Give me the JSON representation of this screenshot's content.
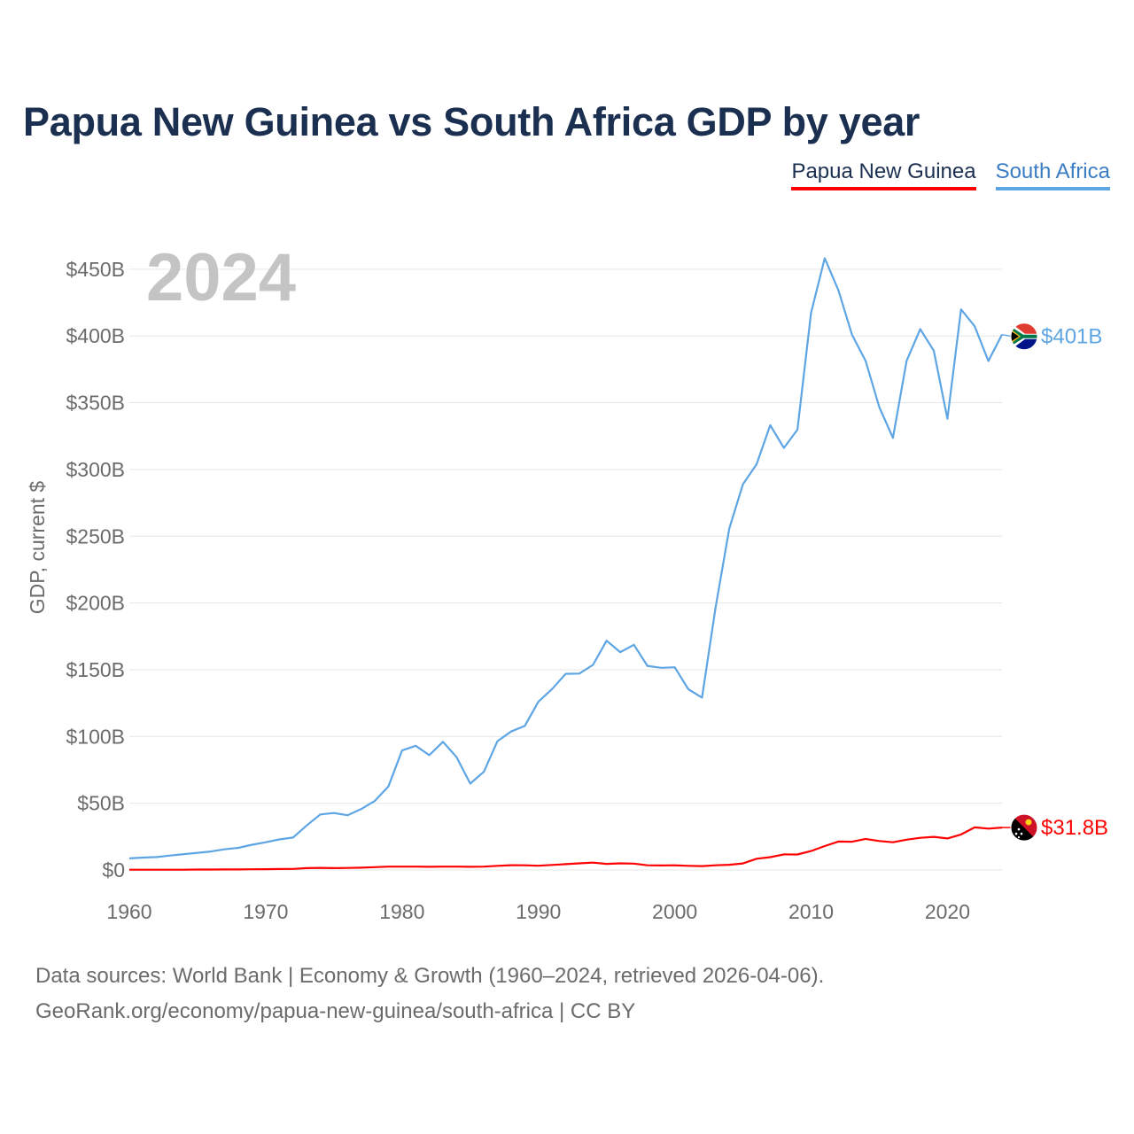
{
  "title": "Papua New Guinea vs South Africa GDP by year",
  "legend": [
    {
      "label": "Papua New Guinea",
      "color": "#ff0000"
    },
    {
      "label": "South Africa",
      "color": "#5ea5e4"
    }
  ],
  "year_label": "2024",
  "source": {
    "line1": "Data sources: World Bank | Economy & Growth (1960–2024, retrieved 2026-04-06).",
    "line2": "GeoRank.org/economy/papua-new-guinea/south-africa | CC BY"
  },
  "chart_data": {
    "type": "line",
    "title": "Papua New Guinea vs South Africa GDP by year",
    "xlabel": "",
    "ylabel": "GDP, current $",
    "xlim": [
      1960,
      2024
    ],
    "ylim": [
      0,
      460
    ],
    "units": "billions of current US$",
    "grid": true,
    "legend_position": "top-right",
    "x_ticks": [
      1960,
      1970,
      1980,
      1990,
      2000,
      2010,
      2020
    ],
    "x_tick_labels": [
      "1960",
      "1970",
      "1980",
      "1990",
      "2000",
      "2010",
      "2020"
    ],
    "y_ticks": [
      0,
      50,
      100,
      150,
      200,
      250,
      300,
      350,
      400,
      450
    ],
    "y_tick_labels": [
      "$0",
      "$50B",
      "$100B",
      "$150B",
      "$200B",
      "$250B",
      "$300B",
      "$350B",
      "$400B",
      "$450B"
    ],
    "x": [
      1960,
      1961,
      1962,
      1963,
      1964,
      1965,
      1966,
      1967,
      1968,
      1969,
      1970,
      1971,
      1972,
      1973,
      1974,
      1975,
      1976,
      1977,
      1978,
      1979,
      1980,
      1981,
      1982,
      1983,
      1984,
      1985,
      1986,
      1987,
      1988,
      1989,
      1990,
      1991,
      1992,
      1993,
      1994,
      1995,
      1996,
      1997,
      1998,
      1999,
      2000,
      2001,
      2002,
      2003,
      2004,
      2005,
      2006,
      2007,
      2008,
      2009,
      2010,
      2011,
      2012,
      2013,
      2014,
      2015,
      2016,
      2017,
      2018,
      2019,
      2020,
      2021,
      2022,
      2023,
      2024
    ],
    "series": [
      {
        "name": "Papua New Guinea",
        "color": "#ff0000",
        "end_label": "$31.8B",
        "flag": "papua-new-guinea-flag-icon",
        "values": [
          0.2,
          0.2,
          0.2,
          0.2,
          0.2,
          0.3,
          0.3,
          0.4,
          0.4,
          0.5,
          0.6,
          0.7,
          0.8,
          1.4,
          1.6,
          1.4,
          1.5,
          1.7,
          2.1,
          2.5,
          2.5,
          2.5,
          2.4,
          2.5,
          2.5,
          2.4,
          2.5,
          3.1,
          3.6,
          3.5,
          3.2,
          3.8,
          4.4,
          5.0,
          5.5,
          4.6,
          5.0,
          4.8,
          3.5,
          3.4,
          3.5,
          3.1,
          2.9,
          3.5,
          3.9,
          4.9,
          8.4,
          9.6,
          11.7,
          11.6,
          14.2,
          17.9,
          21.3,
          21.2,
          23.3,
          21.7,
          20.8,
          22.7,
          24.1,
          24.8,
          23.6,
          26.6,
          31.9,
          31.0,
          31.8
        ]
      },
      {
        "name": "South Africa",
        "color": "#5ea5e4",
        "end_label": "$401B",
        "flag": "south-africa-flag-icon",
        "values": [
          8.7,
          9.3,
          9.7,
          10.8,
          11.9,
          12.9,
          13.9,
          15.5,
          16.6,
          18.9,
          20.8,
          22.9,
          24.3,
          33.3,
          41.6,
          42.7,
          41.0,
          45.6,
          51.7,
          62.6,
          89.5,
          93.0,
          86.0,
          96.0,
          84.5,
          64.7,
          73.6,
          96.5,
          103.7,
          107.9,
          126.0,
          135.5,
          146.9,
          147.1,
          153.6,
          171.7,
          163.2,
          168.7,
          152.9,
          151.4,
          151.8,
          135.4,
          129.1,
          197.0,
          255.8,
          288.9,
          303.9,
          333.1,
          316.1,
          329.8,
          417.4,
          458.2,
          434.4,
          400.9,
          381.2,
          346.7,
          323.6,
          381.3,
          405.1,
          389.0,
          338.0,
          419.9,
          407.2,
          381.2,
          401.0
        ]
      }
    ]
  }
}
